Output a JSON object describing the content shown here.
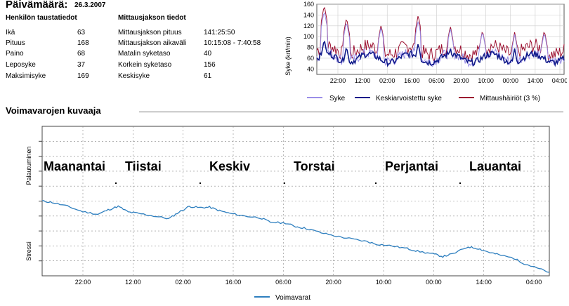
{
  "header": {
    "date_label": "Päivämäärä:",
    "date_value": "26.3.2007"
  },
  "person_info": {
    "title": "Henkilön taustatiedot",
    "rows": [
      {
        "label": "Ikä",
        "value": "63"
      },
      {
        "label": "Pituus",
        "value": "168"
      },
      {
        "label": "Paino",
        "value": "68"
      },
      {
        "label": "Leposyke",
        "value": "37"
      },
      {
        "label": "Maksimisyke",
        "value": "169"
      }
    ]
  },
  "period_info": {
    "title": "Mittausjakson tiedot",
    "rows": [
      {
        "label": "Mittausjakson pituus",
        "value": "141:25:50"
      },
      {
        "label": "Mittausjakson aikaväli",
        "value": "10:15:08 - 7:40:58"
      },
      {
        "label": "Matalin syketaso",
        "value": "40"
      },
      {
        "label": "Korkein syketaso",
        "value": "156"
      },
      {
        "label": "Keskisyke",
        "value": "61"
      }
    ]
  },
  "colors": {
    "syke": "#9a8ee8",
    "keskiarvo": "#101a8a",
    "hairiot": "#9c1030",
    "voimavarat": "#2e7fbf",
    "grid": "#888888"
  },
  "chart_data": [
    {
      "type": "line",
      "ylabel": "Syke (krt/min)",
      "ylim": [
        30,
        160
      ],
      "yticks": [
        "40",
        "60",
        "80",
        "100",
        "120",
        "140",
        "160"
      ],
      "xticks": [
        "22:00",
        "12:00",
        "02:00",
        "16:00",
        "06:00",
        "20:00",
        "10:00",
        "00:00",
        "14:00",
        "04:00"
      ],
      "grid": true,
      "legend_position": "bottom",
      "series": [
        {
          "name": "Syke",
          "baseline": 62,
          "spikes": [
            [
              0.03,
              148
            ],
            [
              0.12,
              128
            ],
            [
              0.26,
              118
            ],
            [
              0.41,
              130
            ],
            [
              0.54,
              116
            ],
            [
              0.67,
              110
            ],
            [
              0.8,
              104
            ],
            [
              0.92,
              108
            ]
          ]
        },
        {
          "name": "Keskiarvoistettu syke",
          "baseline": 60,
          "spikes": [
            [
              0.03,
              95
            ],
            [
              0.12,
              82
            ],
            [
              0.41,
              88
            ],
            [
              0.54,
              80
            ],
            [
              0.8,
              78
            ]
          ]
        },
        {
          "name": "Mittaushäiriöt (3 %)",
          "baseline": 75,
          "spikes": [
            [
              0.03,
              158
            ],
            [
              0.12,
              135
            ],
            [
              0.26,
              122
            ],
            [
              0.41,
              140
            ],
            [
              0.54,
              120
            ],
            [
              0.67,
              112
            ],
            [
              0.8,
              108
            ],
            [
              0.92,
              112
            ]
          ]
        }
      ]
    },
    {
      "type": "line",
      "title": "Voimavarojen kuvaaja",
      "ylabel_top": "Palautuminen",
      "ylabel_bottom": "Stressi",
      "xticks": [
        "22:00",
        "12:00",
        "02:00",
        "16:00",
        "06:00",
        "20:00",
        "10:00",
        "00:00",
        "14:00",
        "04:00"
      ],
      "grid": true,
      "legend_position": "bottom",
      "day_labels": [
        "Maanantai",
        "Tiistai",
        "Keskiv",
        "Torstai",
        "Perjantai",
        "Lauantai"
      ],
      "series": [
        {
          "name": "Voimavarat",
          "x": [
            0,
            0.02,
            0.05,
            0.08,
            0.11,
            0.13,
            0.15,
            0.17,
            0.19,
            0.22,
            0.25,
            0.27,
            0.29,
            0.31,
            0.33,
            0.35,
            0.37,
            0.4,
            0.43,
            0.45,
            0.48,
            0.5,
            0.52,
            0.55,
            0.58,
            0.61,
            0.64,
            0.66,
            0.69,
            0.72,
            0.74,
            0.77,
            0.79,
            0.81,
            0.84,
            0.86,
            0.88,
            0.9,
            0.93,
            0.95,
            0.97,
            1.0
          ],
          "values": [
            -0.1,
            -0.13,
            -0.22,
            -0.34,
            -0.4,
            -0.3,
            -0.22,
            -0.35,
            -0.38,
            -0.44,
            -0.5,
            -0.35,
            -0.22,
            -0.25,
            -0.24,
            -0.32,
            -0.38,
            -0.44,
            -0.48,
            -0.58,
            -0.6,
            -0.68,
            -0.72,
            -0.82,
            -0.9,
            -0.96,
            -1.02,
            -1.08,
            -1.12,
            -1.18,
            -1.24,
            -1.3,
            -1.36,
            -1.3,
            -1.14,
            -1.18,
            -1.26,
            -1.32,
            -1.4,
            -1.52,
            -1.6,
            -1.72
          ],
          "ylim": [
            -1.8,
            1.6
          ]
        }
      ]
    }
  ]
}
